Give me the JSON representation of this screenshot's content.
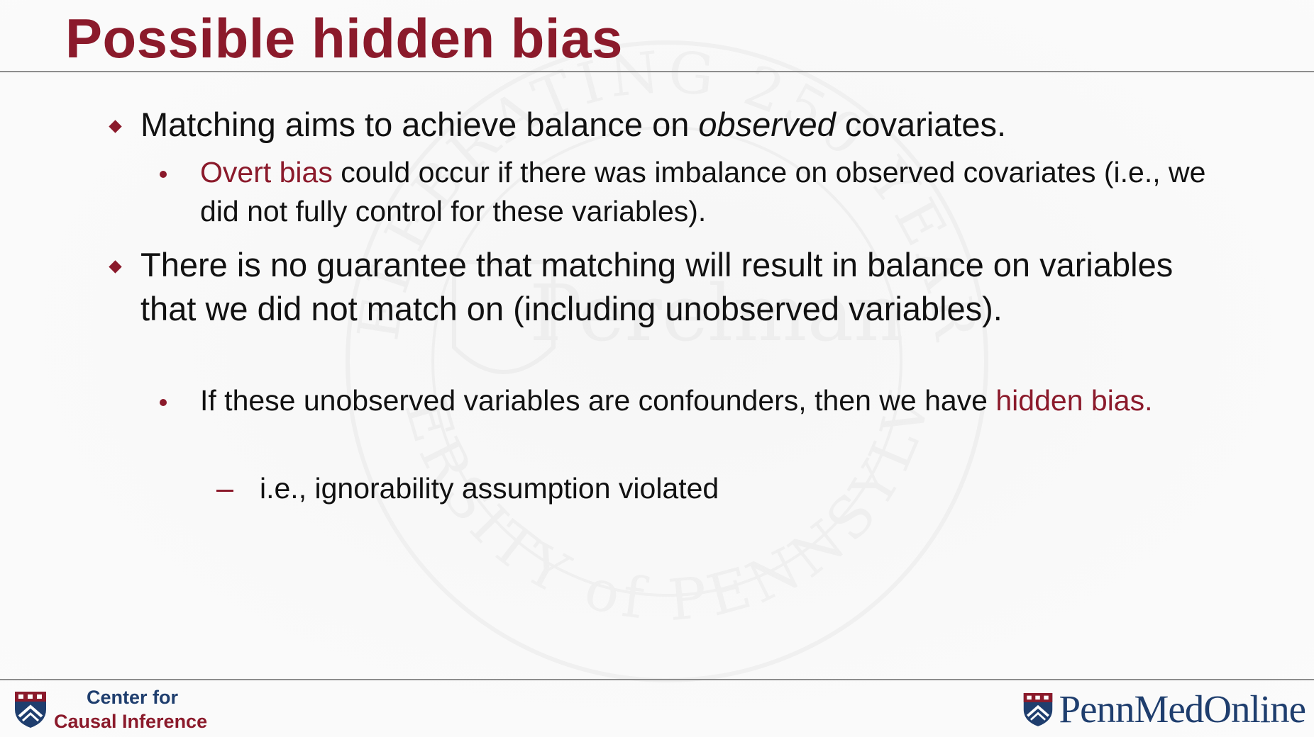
{
  "slide": {
    "title": "Possible hidden bias",
    "bullets": {
      "b1_text": "Matching aims to achieve balance on ",
      "b1_em": "observed",
      "b1_tail": " covariates.",
      "b1_sub_accent": "Overt bias",
      "b1_sub_text": " could occur if there was imbalance on observed covariates (i.e., we did not fully control for these variables).",
      "b2_text": "There is no guarantee that matching will result in balance on variables that we did not match on (including unobserved variables).",
      "b2_sub_text": "If these unobserved variables are confounders, then we have ",
      "b2_sub_accent": "hidden bias.",
      "b2_subsub_text": "i.e., ignorability assumption violated"
    }
  },
  "footer": {
    "left_logo_line1": "Center for",
    "left_logo_line2": "Causal Inference",
    "right_logo_text": "PennMedOnline"
  },
  "watermark": {
    "top_arc": "CELEBRATING 250 YEARS",
    "center": "Perelman",
    "bottom_arc": "UNIVERSITY of PENNSYLVANIA"
  },
  "colors": {
    "accent": "#8b1a2b",
    "navy": "#1f3e6e",
    "rule": "#8d8d8d"
  },
  "icons": {
    "left_logo": "penn-shield-icon",
    "right_logo": "penn-shield-icon"
  }
}
